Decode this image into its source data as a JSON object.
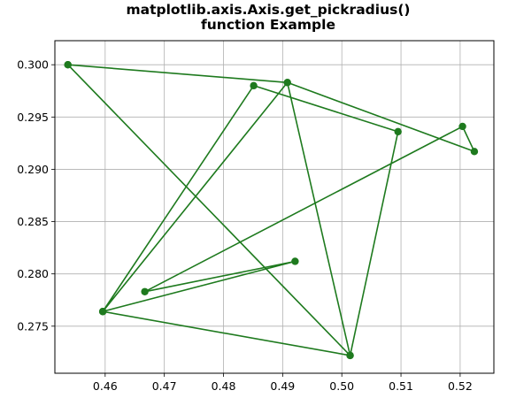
{
  "chart_data": {
    "type": "line",
    "title_lines": [
      "matplotlib.axis.Axis.get_pickradius()",
      "function Example"
    ],
    "xlabel": "",
    "ylabel": "",
    "xlim": [
      0.4515,
      0.5257
    ],
    "ylim": [
      0.2705,
      0.3023
    ],
    "xticks": [
      0.46,
      0.47,
      0.48,
      0.49,
      0.5,
      0.51,
      0.52
    ],
    "xtick_labels": [
      "0.46",
      "0.47",
      "0.48",
      "0.49",
      "0.50",
      "0.51",
      "0.52"
    ],
    "yticks": [
      0.275,
      0.28,
      0.285,
      0.29,
      0.295,
      0.3
    ],
    "ytick_labels": [
      "0.275",
      "0.280",
      "0.285",
      "0.290",
      "0.295",
      "0.300"
    ],
    "grid": true,
    "marker": "circle",
    "color": "#1e7a1e",
    "series": [
      {
        "x": [
          0.4537,
          0.4908,
          0.5224,
          0.5204,
          0.4667,
          0.4921,
          0.4596,
          0.4908,
          0.5014,
          0.5095,
          0.4851,
          0.4596,
          0.5014,
          0.4537
        ],
        "y": [
          0.3,
          0.2983,
          0.2917,
          0.2941,
          0.2783,
          0.2812,
          0.2764,
          0.2983,
          0.2722,
          0.2936,
          0.298,
          0.2764,
          0.2722,
          0.3
        ]
      }
    ]
  }
}
